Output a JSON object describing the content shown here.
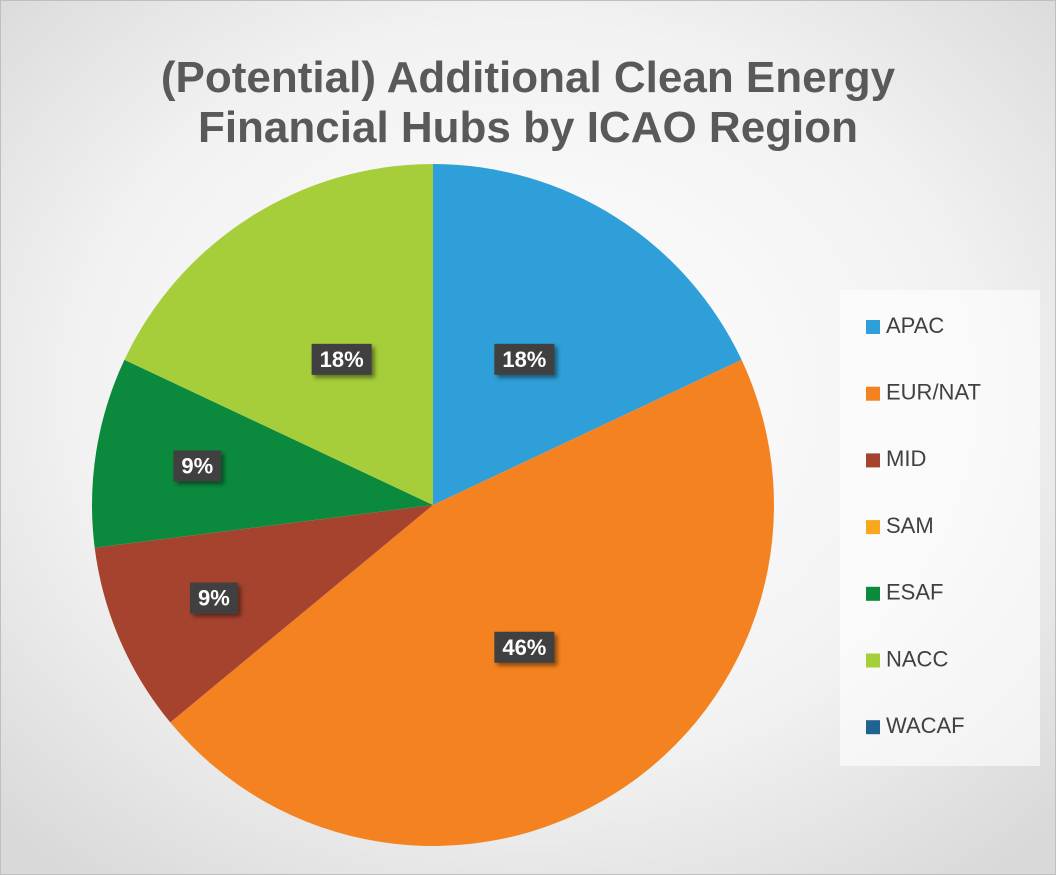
{
  "chart_data": {
    "type": "pie",
    "title": "(Potential) Additional Clean Energy Financial Hubs by ICAO Region",
    "categories": [
      "APAC",
      "EUR/NAT",
      "MID",
      "SAM",
      "ESAF",
      "NACC",
      "WACAF"
    ],
    "values": [
      18,
      46,
      9,
      0,
      9,
      18,
      0
    ],
    "value_labels": [
      "18%",
      "46%",
      "9%",
      null,
      "9%",
      "18%",
      null
    ],
    "colors": [
      "#2e9fd8",
      "#f58220",
      "#a5432f",
      "#f9a81b",
      "#0b8a3d",
      "#a6cd3a",
      "#1f6391"
    ],
    "legend": "right"
  }
}
